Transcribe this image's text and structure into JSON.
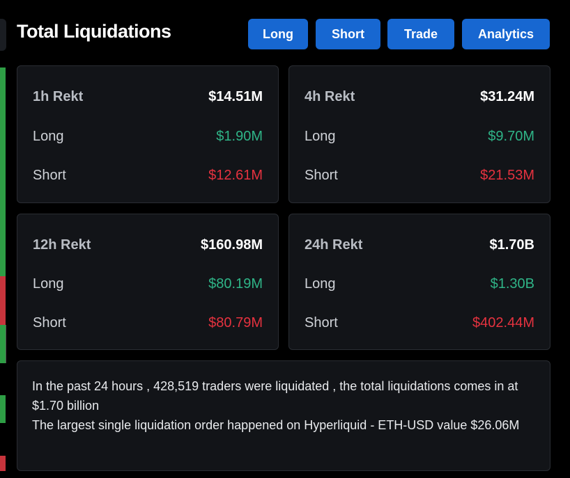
{
  "header": {
    "title": "Total Liquidations",
    "tabs": [
      "Long",
      "Short",
      "Trade",
      "Analytics"
    ]
  },
  "cards": [
    {
      "period": "1h Rekt",
      "total": "$14.51M",
      "long_label": "Long",
      "long": "$1.90M",
      "short_label": "Short",
      "short": "$12.61M"
    },
    {
      "period": "4h Rekt",
      "total": "$31.24M",
      "long_label": "Long",
      "long": "$9.70M",
      "short_label": "Short",
      "short": "$21.53M"
    },
    {
      "period": "12h Rekt",
      "total": "$160.98M",
      "long_label": "Long",
      "long": "$80.19M",
      "short_label": "Short",
      "short": "$80.79M"
    },
    {
      "period": "24h Rekt",
      "total": "$1.70B",
      "long_label": "Long",
      "long": "$1.30B",
      "short_label": "Short",
      "short": "$402.44M"
    }
  ],
  "summary": {
    "line1": "In the past 24 hours , 428,519 traders were liquidated , the total liquidations comes in at $1.70 billion",
    "line2": "The largest single liquidation order happened on Hyperliquid - ETH-USD value $26.06M"
  },
  "colors": {
    "accent": "#1767d1",
    "long": "#2fb487",
    "short": "#e5323f",
    "card_bg": "#121418"
  }
}
